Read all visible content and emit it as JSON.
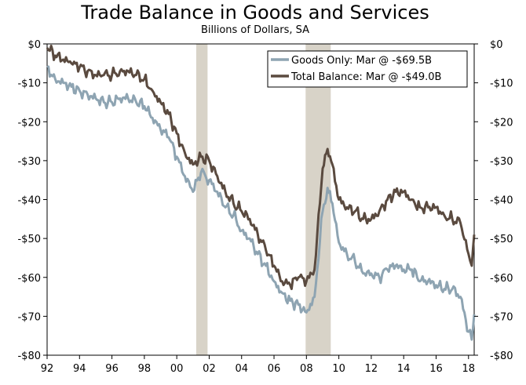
{
  "chart_data": {
    "type": "line",
    "title": "Trade Balance in Goods and Services",
    "subtitle": "Billions of Dollars, SA",
    "xlabel": "",
    "ylabel": "",
    "xlim": [
      1992.0,
      2018.35
    ],
    "ylim": [
      -80,
      0
    ],
    "x_tick_labels": [
      {
        "label": "92",
        "x": 1992
      },
      {
        "label": "94",
        "x": 1994
      },
      {
        "label": "96",
        "x": 1996
      },
      {
        "label": "98",
        "x": 1998
      },
      {
        "label": "00",
        "x": 2000
      },
      {
        "label": "02",
        "x": 2002
      },
      {
        "label": "04",
        "x": 2004
      },
      {
        "label": "06",
        "x": 2006
      },
      {
        "label": "08",
        "x": 2008
      },
      {
        "label": "10",
        "x": 2010
      },
      {
        "label": "12",
        "x": 2012
      },
      {
        "label": "14",
        "x": 2014
      },
      {
        "label": "16",
        "x": 2016
      },
      {
        "label": "18",
        "x": 2018
      }
    ],
    "y_tick_labels": [
      {
        "label": "$0",
        "y": 0
      },
      {
        "label": "-$10",
        "y": -10
      },
      {
        "label": "-$20",
        "y": -20
      },
      {
        "label": "-$30",
        "y": -30
      },
      {
        "label": "-$40",
        "y": -40
      },
      {
        "label": "-$50",
        "y": -50
      },
      {
        "label": "-$60",
        "y": -60
      },
      {
        "label": "-$70",
        "y": -70
      },
      {
        "label": "-$80",
        "y": -80
      }
    ],
    "recessions": [
      {
        "start": 2001.2,
        "end": 2001.9
      },
      {
        "start": 2007.95,
        "end": 2009.5
      }
    ],
    "legend": "top-right",
    "series": [
      {
        "name": "Goods Only: Mar @ -$69.5B",
        "color": "#8ea4b2",
        "points": [
          [
            1992.0,
            -6
          ],
          [
            1992.5,
            -9
          ],
          [
            1993.0,
            -10
          ],
          [
            1993.5,
            -11
          ],
          [
            1994.0,
            -12
          ],
          [
            1994.5,
            -13
          ],
          [
            1995.0,
            -14
          ],
          [
            1995.5,
            -15
          ],
          [
            1996.0,
            -15
          ],
          [
            1996.5,
            -14
          ],
          [
            1997.0,
            -14
          ],
          [
            1997.5,
            -15
          ],
          [
            1998.0,
            -16
          ],
          [
            1998.5,
            -19
          ],
          [
            1999.0,
            -22
          ],
          [
            1999.5,
            -24
          ],
          [
            2000.0,
            -29
          ],
          [
            2000.5,
            -34
          ],
          [
            2001.0,
            -38
          ],
          [
            2001.5,
            -33
          ],
          [
            2002.0,
            -35
          ],
          [
            2002.5,
            -38
          ],
          [
            2003.0,
            -42
          ],
          [
            2003.5,
            -44
          ],
          [
            2004.0,
            -48
          ],
          [
            2004.5,
            -50
          ],
          [
            2005.0,
            -54
          ],
          [
            2005.5,
            -57
          ],
          [
            2006.0,
            -61
          ],
          [
            2006.5,
            -64
          ],
          [
            2007.0,
            -66
          ],
          [
            2007.5,
            -67
          ],
          [
            2008.0,
            -69
          ],
          [
            2008.5,
            -65
          ],
          [
            2009.0,
            -43
          ],
          [
            2009.3,
            -37
          ],
          [
            2009.6,
            -41
          ],
          [
            2010.0,
            -51
          ],
          [
            2010.5,
            -54
          ],
          [
            2011.0,
            -56
          ],
          [
            2011.5,
            -59
          ],
          [
            2012.0,
            -59
          ],
          [
            2012.5,
            -60
          ],
          [
            2013.0,
            -58
          ],
          [
            2013.5,
            -57
          ],
          [
            2014.0,
            -58
          ],
          [
            2014.5,
            -58
          ],
          [
            2015.0,
            -61
          ],
          [
            2015.5,
            -61
          ],
          [
            2016.0,
            -62
          ],
          [
            2016.5,
            -63
          ],
          [
            2017.0,
            -63
          ],
          [
            2017.5,
            -65
          ],
          [
            2018.0,
            -74
          ],
          [
            2018.2,
            -76
          ],
          [
            2018.35,
            -69.5
          ]
        ]
      },
      {
        "name": "Total Balance: Mar @ -$49.0B",
        "color": "#5a4a3f",
        "points": [
          [
            1992.0,
            -1
          ],
          [
            1992.5,
            -3
          ],
          [
            1993.0,
            -4
          ],
          [
            1993.5,
            -5
          ],
          [
            1994.0,
            -6
          ],
          [
            1994.5,
            -7
          ],
          [
            1995.0,
            -8
          ],
          [
            1995.5,
            -8
          ],
          [
            1996.0,
            -8
          ],
          [
            1996.5,
            -7
          ],
          [
            1997.0,
            -7
          ],
          [
            1997.5,
            -8
          ],
          [
            1998.0,
            -9
          ],
          [
            1998.5,
            -12
          ],
          [
            1999.0,
            -15
          ],
          [
            1999.5,
            -18
          ],
          [
            2000.0,
            -23
          ],
          [
            2000.5,
            -28
          ],
          [
            2001.0,
            -31
          ],
          [
            2001.5,
            -29
          ],
          [
            2002.0,
            -30
          ],
          [
            2002.5,
            -34
          ],
          [
            2003.0,
            -38
          ],
          [
            2003.5,
            -41
          ],
          [
            2004.0,
            -43
          ],
          [
            2004.5,
            -45
          ],
          [
            2005.0,
            -49
          ],
          [
            2005.5,
            -53
          ],
          [
            2006.0,
            -57
          ],
          [
            2006.5,
            -61
          ],
          [
            2007.0,
            -62
          ],
          [
            2007.5,
            -60
          ],
          [
            2008.0,
            -61
          ],
          [
            2008.5,
            -58
          ],
          [
            2009.0,
            -32
          ],
          [
            2009.3,
            -27
          ],
          [
            2009.6,
            -31
          ],
          [
            2010.0,
            -40
          ],
          [
            2010.5,
            -42
          ],
          [
            2011.0,
            -43
          ],
          [
            2011.5,
            -45
          ],
          [
            2012.0,
            -45
          ],
          [
            2012.5,
            -43
          ],
          [
            2013.0,
            -40
          ],
          [
            2013.5,
            -38
          ],
          [
            2014.0,
            -38
          ],
          [
            2014.5,
            -40
          ],
          [
            2015.0,
            -42
          ],
          [
            2015.5,
            -42
          ],
          [
            2016.0,
            -42
          ],
          [
            2016.5,
            -44
          ],
          [
            2017.0,
            -45
          ],
          [
            2017.5,
            -46
          ],
          [
            2018.0,
            -54
          ],
          [
            2018.2,
            -57
          ],
          [
            2018.35,
            -49.0
          ]
        ]
      }
    ]
  }
}
